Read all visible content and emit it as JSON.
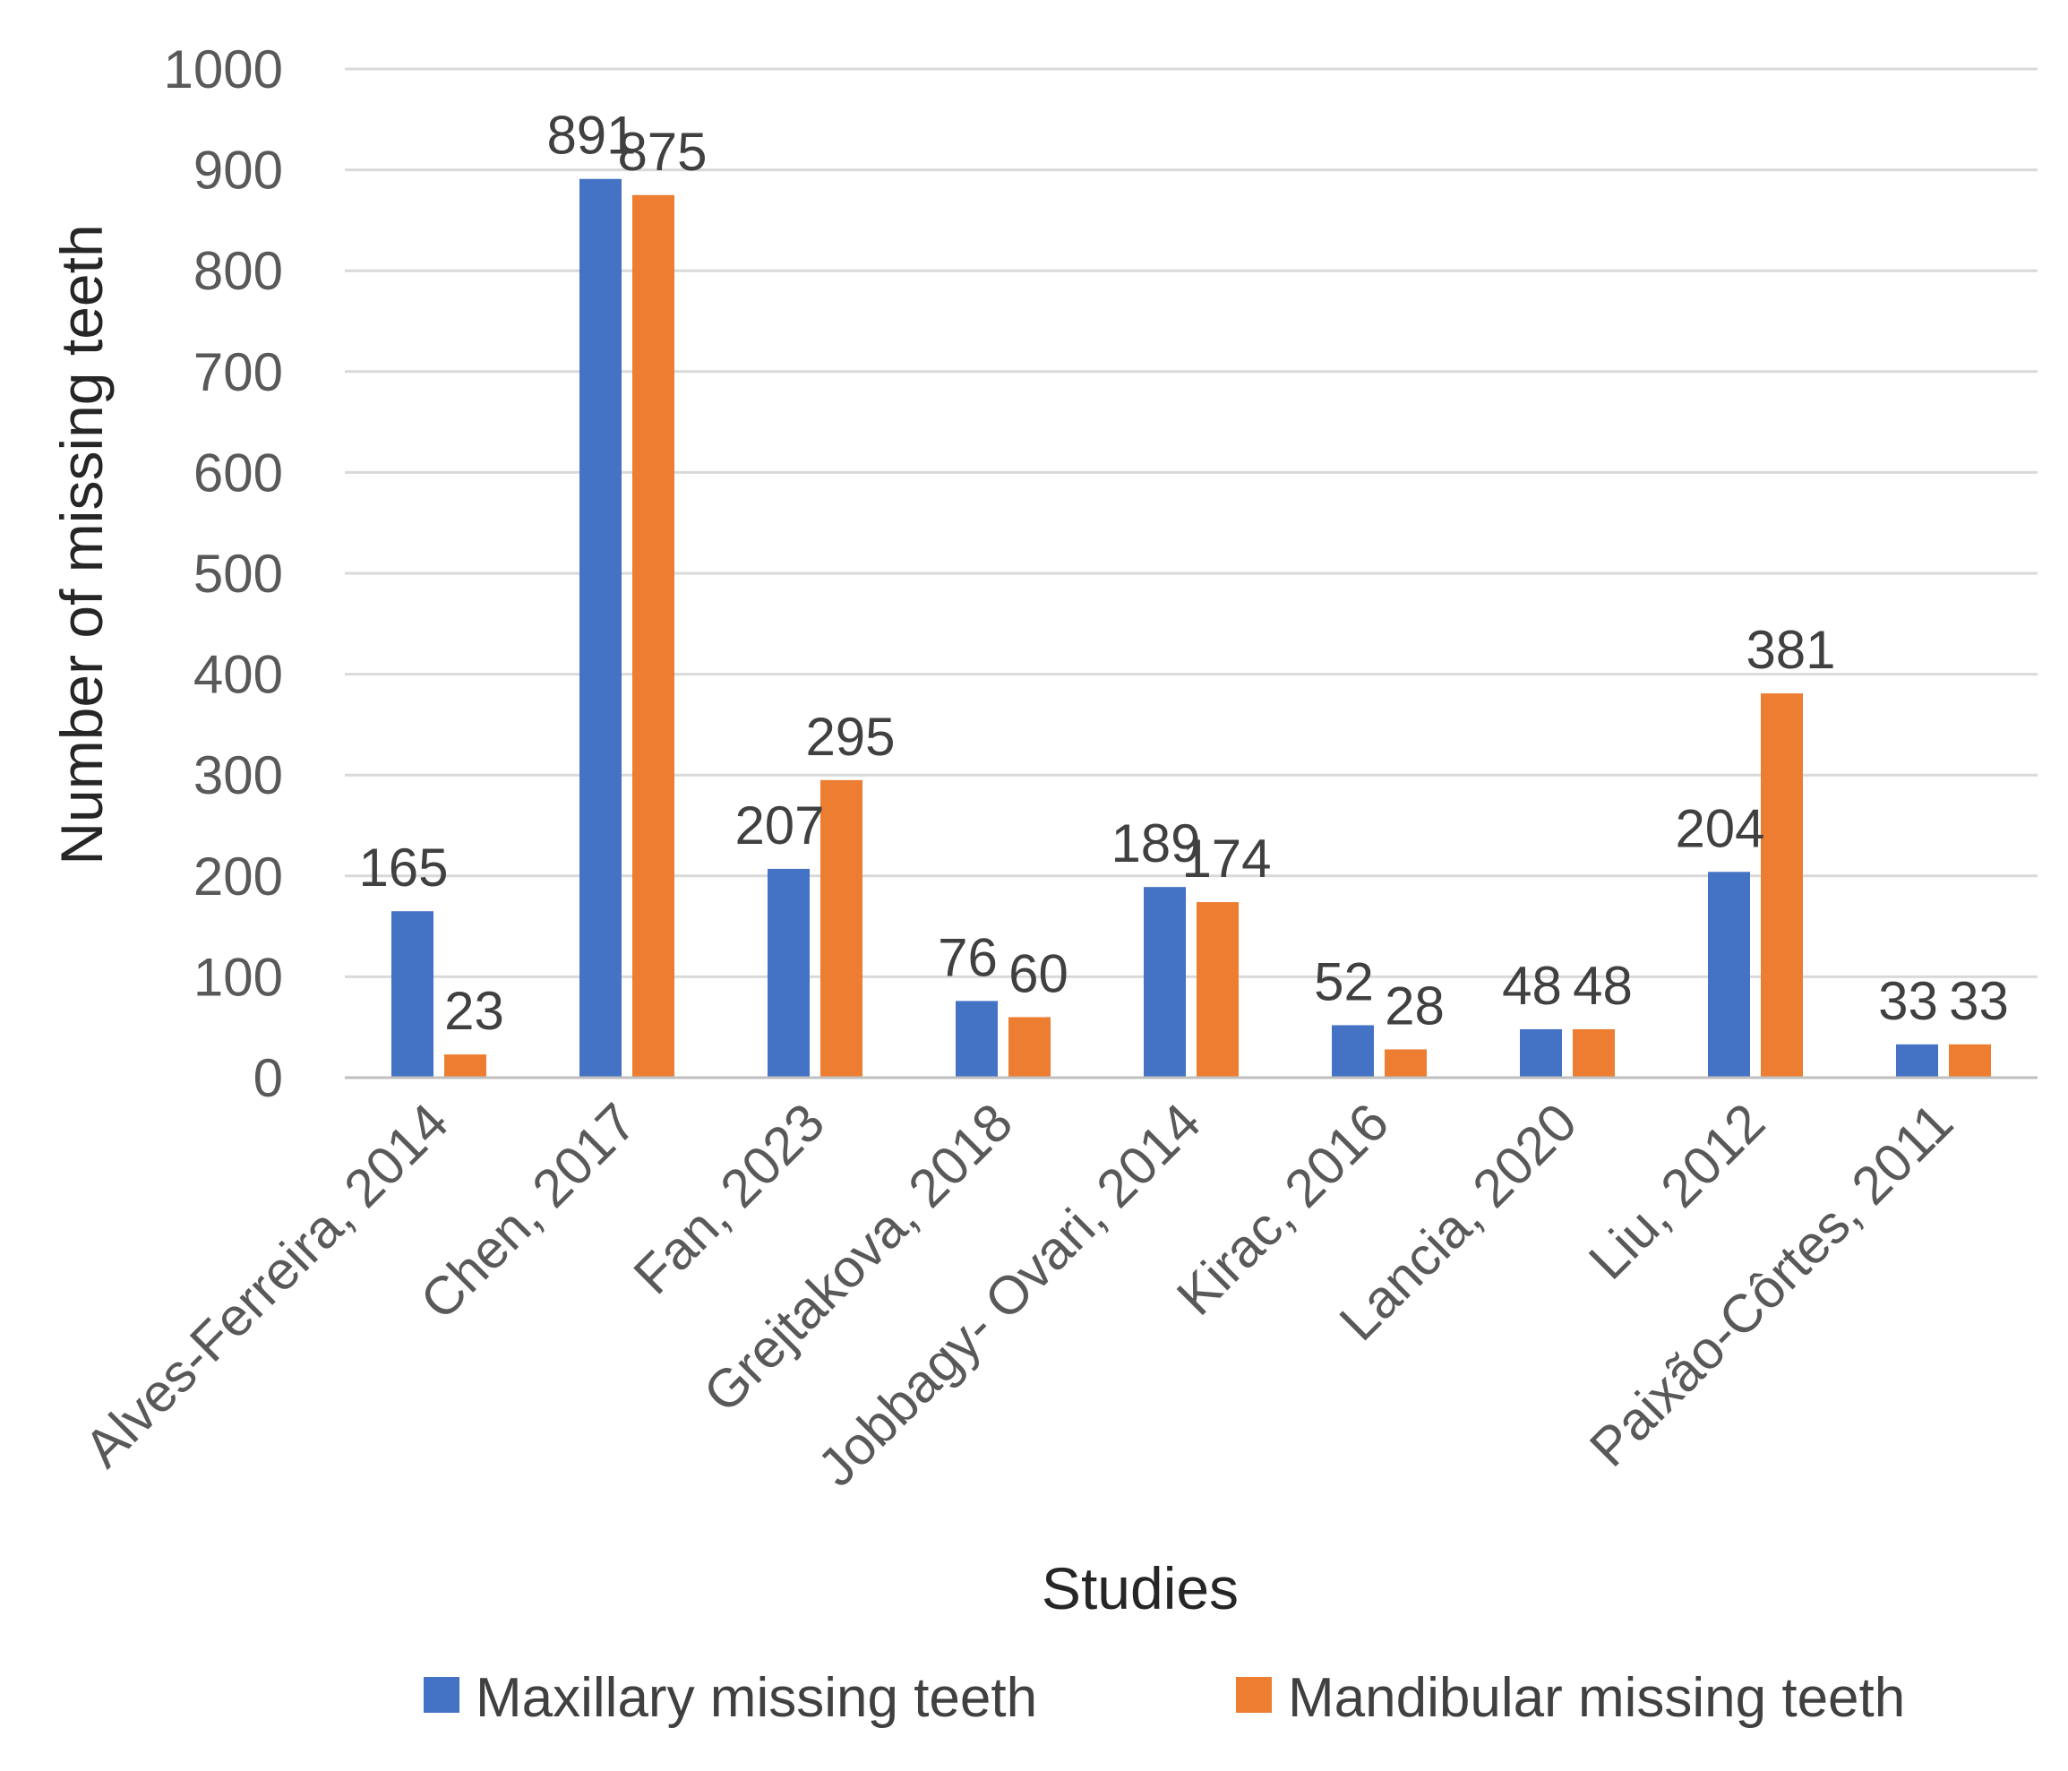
{
  "chart_data": {
    "type": "bar",
    "title": "",
    "xlabel": "Studies",
    "ylabel": "Number of missing teeth",
    "ylim": [
      0,
      1000
    ],
    "ytick_step": 100,
    "yticks": [
      "0",
      "100",
      "200",
      "300",
      "400",
      "500",
      "600",
      "700",
      "800",
      "900",
      "1000"
    ],
    "grid": true,
    "legend_position": "bottom",
    "categories": [
      "Alves-Ferreira, 2014",
      "Chen, 2017",
      "Fan, 2023",
      "Grejtakova, 2018",
      "Jobbagy- Ovari, 2014",
      "Kirac, 2016",
      "Lancia, 2020",
      "Liu, 2012",
      "Paixão-Côrtes, 2011"
    ],
    "series": [
      {
        "name": "Maxillary missing teeth",
        "color": "#4472c4",
        "values": [
          165,
          891,
          207,
          76,
          189,
          52,
          48,
          204,
          33
        ],
        "labels": [
          "165",
          "891",
          "207",
          "76",
          "189",
          "52",
          "48",
          "204",
          "33"
        ]
      },
      {
        "name": "Mandibular missing teeth",
        "color": "#ed7d31",
        "values": [
          23,
          875,
          295,
          60,
          174,
          28,
          48,
          381,
          33
        ],
        "labels": [
          "23",
          "875",
          "295",
          "60",
          "174",
          "28",
          "48",
          "381",
          "33"
        ]
      }
    ]
  }
}
